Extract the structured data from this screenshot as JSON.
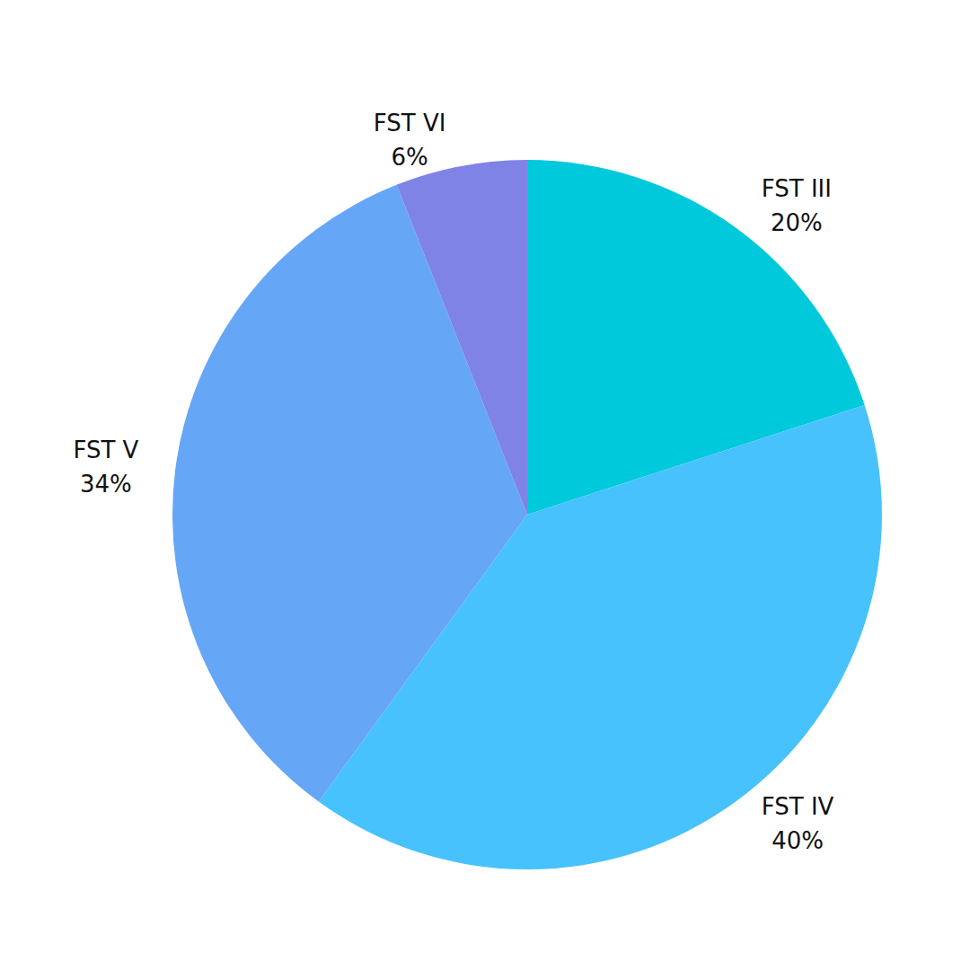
{
  "chart_data": {
    "type": "pie",
    "categories": [
      "FST III",
      "FST IV",
      "FST V",
      "FST VI"
    ],
    "values": [
      20,
      40,
      34,
      6
    ],
    "value_labels": [
      "20%",
      "40%",
      "34%",
      "6%"
    ],
    "colors": [
      "#00c9dc",
      "#48c2fd",
      "#65a6f7",
      "#7f83e6"
    ],
    "data_labels": true
  }
}
